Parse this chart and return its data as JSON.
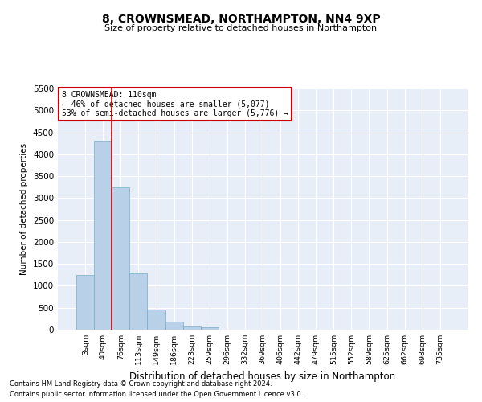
{
  "title": "8, CROWNSMEAD, NORTHAMPTON, NN4 9XP",
  "subtitle": "Size of property relative to detached houses in Northampton",
  "xlabel": "Distribution of detached houses by size in Northampton",
  "ylabel": "Number of detached properties",
  "footnote1": "Contains HM Land Registry data © Crown copyright and database right 2024.",
  "footnote2": "Contains public sector information licensed under the Open Government Licence v3.0.",
  "annotation_title": "8 CROWNSMEAD: 110sqm",
  "annotation_line2": "← 46% of detached houses are smaller (5,077)",
  "annotation_line3": "53% of semi-detached houses are larger (5,776) →",
  "bar_color": "#b8d0e8",
  "bar_edge_color": "#7aaac8",
  "vline_color": "#cc0000",
  "vline_x_index": 1.5,
  "categories": [
    "3sqm",
    "40sqm",
    "76sqm",
    "113sqm",
    "149sqm",
    "186sqm",
    "223sqm",
    "259sqm",
    "296sqm",
    "332sqm",
    "369sqm",
    "406sqm",
    "442sqm",
    "479sqm",
    "515sqm",
    "552sqm",
    "589sqm",
    "625sqm",
    "662sqm",
    "698sqm",
    "735sqm"
  ],
  "values": [
    1250,
    4300,
    3250,
    1275,
    450,
    175,
    75,
    50,
    0,
    0,
    0,
    0,
    0,
    0,
    0,
    0,
    0,
    0,
    0,
    0,
    0
  ],
  "ylim": [
    0,
    5500
  ],
  "yticks": [
    0,
    500,
    1000,
    1500,
    2000,
    2500,
    3000,
    3500,
    4000,
    4500,
    5000,
    5500
  ],
  "figsize": [
    6.0,
    5.0
  ],
  "dpi": 100,
  "background_color": "#ffffff",
  "plot_bg_color": "#e8eef8"
}
